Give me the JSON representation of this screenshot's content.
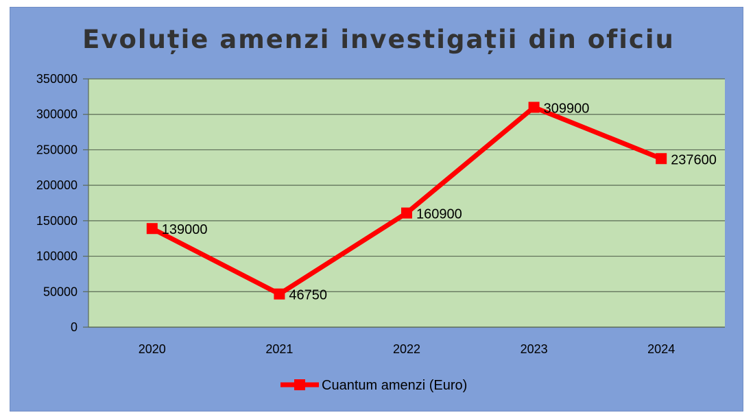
{
  "chart_data": {
    "type": "line",
    "title": "Evoluție amenzi investigații din oficiu",
    "categories": [
      "2020",
      "2021",
      "2022",
      "2023",
      "2024"
    ],
    "series": [
      {
        "name": "Cuantum amenzi (Euro)",
        "values": [
          139000,
          46750,
          160900,
          309900,
          237600
        ],
        "color": "#ff0000",
        "marker": "square"
      }
    ],
    "data_labels": [
      "139000",
      "46750",
      "160900",
      "309900",
      "237600"
    ],
    "y_ticks": [
      "0",
      "50000",
      "100000",
      "150000",
      "200000",
      "250000",
      "300000",
      "350000"
    ],
    "ylim": [
      0,
      350000
    ],
    "grid": true,
    "legend_position": "bottom",
    "colors": {
      "frame_background": "#809fd8",
      "plot_background": "#c3e0b3",
      "gridline": "#5a6a55",
      "text": "#000000",
      "title": "#333333"
    }
  }
}
